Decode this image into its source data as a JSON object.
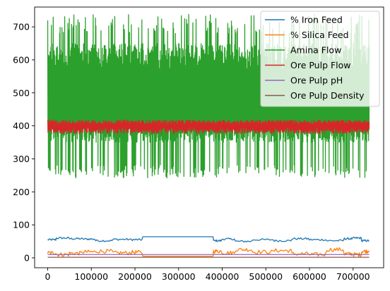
{
  "chart_data": {
    "type": "line",
    "title": "",
    "xlabel": "",
    "ylabel": "",
    "xlim": [
      -30000,
      770000
    ],
    "ylim": [
      -30,
      760
    ],
    "x_ticks": [
      0,
      100000,
      200000,
      300000,
      400000,
      500000,
      600000,
      700000
    ],
    "x_tick_labels": [
      "0",
      "100000",
      "200000",
      "300000",
      "400000",
      "500000",
      "600000",
      "700000"
    ],
    "y_ticks": [
      0,
      100,
      200,
      300,
      400,
      500,
      600,
      700
    ],
    "y_tick_labels": [
      "0",
      "100",
      "200",
      "300",
      "400",
      "500",
      "600",
      "700"
    ],
    "grid": false,
    "legend_position": "top-right",
    "series": [
      {
        "name": "% Iron Feed",
        "color": "#1f77b4",
        "x": [
          0,
          20000,
          50000,
          80000,
          110000,
          150000,
          190000,
          218000,
          260000,
          300000,
          365000,
          380000,
          400000,
          430000,
          470000,
          520000,
          560000,
          600000,
          640000,
          680000,
          700000,
          720000,
          737000
        ],
        "y": [
          55,
          60,
          58,
          57,
          52,
          56,
          55,
          64,
          64,
          64,
          64,
          52,
          57,
          50,
          55,
          52,
          58,
          55,
          52,
          58,
          60,
          52,
          50
        ]
      },
      {
        "name": "% Silica Feed",
        "color": "#ff7f0e",
        "x": [
          0,
          20000,
          50000,
          80000,
          110000,
          150000,
          190000,
          218000,
          260000,
          300000,
          365000,
          380000,
          400000,
          430000,
          470000,
          520000,
          560000,
          600000,
          640000,
          680000,
          700000,
          720000,
          737000
        ],
        "y": [
          15,
          10,
          14,
          18,
          20,
          15,
          17,
          5,
          5,
          5,
          5,
          20,
          15,
          25,
          18,
          22,
          12,
          10,
          25,
          12,
          10,
          20,
          22
        ]
      },
      {
        "name": "Amina Flow",
        "color": "#2ca02c",
        "x_start": 0,
        "x_end": 737000,
        "y_min": 242,
        "y_max": 739,
        "y_typical_low": 350,
        "y_typical_high": 650
      },
      {
        "name": "Ore Pulp Flow",
        "color": "#d62728",
        "x_start": 0,
        "x_end": 737000,
        "y_min": 376,
        "y_max": 418,
        "y_center": 400
      },
      {
        "name": "Ore Pulp pH",
        "color": "#9467bd",
        "x": [
          0,
          200000,
          400000,
          600000,
          737000
        ],
        "y": [
          10,
          10,
          10,
          10,
          10
        ]
      },
      {
        "name": "Ore Pulp Density",
        "color": "#8c564b",
        "x": [
          0,
          200000,
          400000,
          600000,
          737000
        ],
        "y": [
          1.7,
          1.7,
          1.7,
          1.7,
          1.7
        ]
      }
    ]
  }
}
